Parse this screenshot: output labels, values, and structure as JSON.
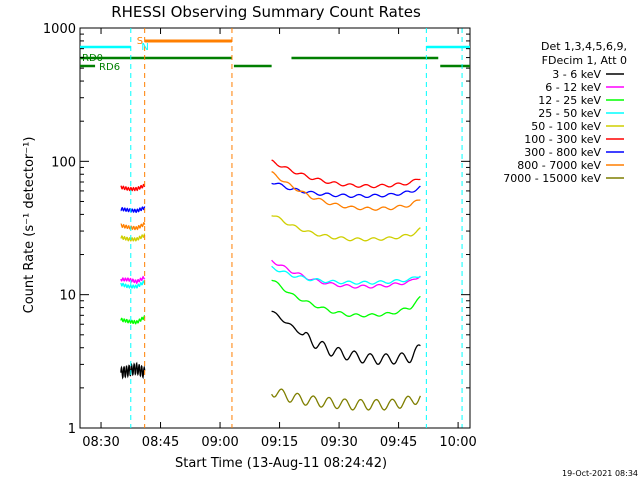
{
  "chart_data": {
    "type": "line",
    "title": "RHESSI Observing Summary Count Rates",
    "xlabel": "Start Time (13-Aug-11 08:24:42)",
    "ylabel": "Count Rate (s⁻¹ detector⁻¹)",
    "yscale": "log",
    "ylim": [
      1,
      1000
    ],
    "xlim": [
      "08:24:42",
      "10:03:00"
    ],
    "x_ticks": [
      "08:30",
      "08:45",
      "09:00",
      "09:15",
      "09:30",
      "09:45",
      "10:00"
    ],
    "y_ticks": [
      "1",
      "10",
      "100",
      "1000"
    ],
    "legend_header": [
      "Det 1,3,4,5,6,9,",
      "FDecim 1, Att 0"
    ],
    "legend_placement": "right",
    "footer": "19-Oct-2021 08:34",
    "flags": [
      {
        "label": "S",
        "color": "#ff7f00"
      },
      {
        "label": "N",
        "color": "#00ffff"
      },
      {
        "label": "RD0",
        "color": "#007f00"
      },
      {
        "label": "RD6",
        "color": "#007f00"
      }
    ],
    "intervals": {
      "orbit_segments": [
        {
          "start": "08:24:42",
          "end": "08:41:00"
        },
        {
          "start": "09:13:00",
          "end": "09:50:30"
        }
      ]
    },
    "series": [
      {
        "name": "3 - 6 keV",
        "color": "#000000",
        "segment1": [
          [
            0,
            2.6
          ],
          [
            2,
            2.7
          ],
          [
            4,
            2.8
          ],
          [
            6,
            2.6
          ]
        ],
        "segment2": [
          [
            0,
            7.5
          ],
          [
            5,
            5.8
          ],
          [
            10,
            4.5
          ],
          [
            15,
            3.8
          ],
          [
            20,
            3.5
          ],
          [
            25,
            3.3
          ],
          [
            30,
            3.3
          ],
          [
            35,
            3.4
          ],
          [
            37.5,
            4.0
          ]
        ]
      },
      {
        "name": "6 - 12 keV",
        "color": "#ff00ff",
        "segment1": [
          [
            0,
            13
          ],
          [
            2,
            13
          ],
          [
            4,
            12.5
          ],
          [
            6,
            13.5
          ]
        ],
        "segment2": [
          [
            0,
            18
          ],
          [
            5,
            15
          ],
          [
            10,
            13
          ],
          [
            15,
            12
          ],
          [
            20,
            11.5
          ],
          [
            25,
            11.5
          ],
          [
            30,
            11.8
          ],
          [
            35,
            12.5
          ],
          [
            37.5,
            14
          ]
        ]
      },
      {
        "name": "12 - 25 keV",
        "color": "#00ff00",
        "segment1": [
          [
            0,
            6.5
          ],
          [
            2,
            6.3
          ],
          [
            4,
            6.2
          ],
          [
            6,
            6.8
          ]
        ],
        "segment2": [
          [
            0,
            13
          ],
          [
            5,
            10
          ],
          [
            10,
            8.5
          ],
          [
            15,
            7.5
          ],
          [
            20,
            7.0
          ],
          [
            25,
            7.0
          ],
          [
            30,
            7.2
          ],
          [
            35,
            8.0
          ],
          [
            37.5,
            9.5
          ]
        ]
      },
      {
        "name": "25 - 50 keV",
        "color": "#00ffff",
        "segment1": [
          [
            0,
            12
          ],
          [
            2,
            11.5
          ],
          [
            4,
            11.5
          ],
          [
            6,
            12.5
          ]
        ],
        "segment2": [
          [
            0,
            16
          ],
          [
            5,
            14
          ],
          [
            10,
            13
          ],
          [
            15,
            12.5
          ],
          [
            20,
            12.3
          ],
          [
            25,
            12.3
          ],
          [
            30,
            12.5
          ],
          [
            35,
            13
          ],
          [
            37.5,
            14
          ]
        ]
      },
      {
        "name": "50 - 100 keV",
        "color": "#cfcf00",
        "segment1": [
          [
            0,
            27
          ],
          [
            2,
            26
          ],
          [
            4,
            26
          ],
          [
            6,
            28
          ]
        ],
        "segment2": [
          [
            0,
            40
          ],
          [
            5,
            33
          ],
          [
            10,
            29
          ],
          [
            15,
            27
          ],
          [
            20,
            26
          ],
          [
            25,
            26
          ],
          [
            30,
            26.5
          ],
          [
            35,
            28
          ],
          [
            37.5,
            31
          ]
        ]
      },
      {
        "name": "100 - 300 keV",
        "color": "#ff0000",
        "segment1": [
          [
            0,
            64
          ],
          [
            2,
            62
          ],
          [
            4,
            62
          ],
          [
            6,
            66
          ]
        ],
        "segment2": [
          [
            0,
            100
          ],
          [
            5,
            85
          ],
          [
            10,
            75
          ],
          [
            15,
            69
          ],
          [
            20,
            66
          ],
          [
            25,
            65
          ],
          [
            30,
            66
          ],
          [
            35,
            69
          ],
          [
            37.5,
            75
          ]
        ]
      },
      {
        "name": "300 - 800 keV",
        "color": "#0000ff",
        "segment1": [
          [
            0,
            44
          ],
          [
            2,
            43
          ],
          [
            4,
            42.5
          ],
          [
            6,
            45
          ]
        ],
        "segment2": [
          [
            0,
            70
          ],
          [
            5,
            62
          ],
          [
            10,
            58
          ],
          [
            15,
            56
          ],
          [
            20,
            55
          ],
          [
            25,
            55
          ],
          [
            30,
            56
          ],
          [
            35,
            59
          ],
          [
            37.5,
            64
          ]
        ]
      },
      {
        "name": "800 - 7000 keV",
        "color": "#ff7f00",
        "segment1": [
          [
            0,
            33
          ],
          [
            2,
            32
          ],
          [
            4,
            31.5
          ],
          [
            6,
            34
          ]
        ],
        "segment2": [
          [
            0,
            82
          ],
          [
            5,
            65
          ],
          [
            10,
            54
          ],
          [
            15,
            48
          ],
          [
            20,
            45
          ],
          [
            25,
            44
          ],
          [
            30,
            44.5
          ],
          [
            35,
            47
          ],
          [
            37.5,
            52
          ]
        ]
      },
      {
        "name": "7000 - 15000 keV",
        "color": "#7f7f00",
        "segment1": [],
        "segment2": [
          [
            0,
            1.9
          ],
          [
            5,
            1.7
          ],
          [
            10,
            1.6
          ],
          [
            15,
            1.55
          ],
          [
            20,
            1.5
          ],
          [
            25,
            1.5
          ],
          [
            30,
            1.5
          ],
          [
            35,
            1.6
          ],
          [
            37.5,
            1.7
          ]
        ]
      }
    ]
  }
}
